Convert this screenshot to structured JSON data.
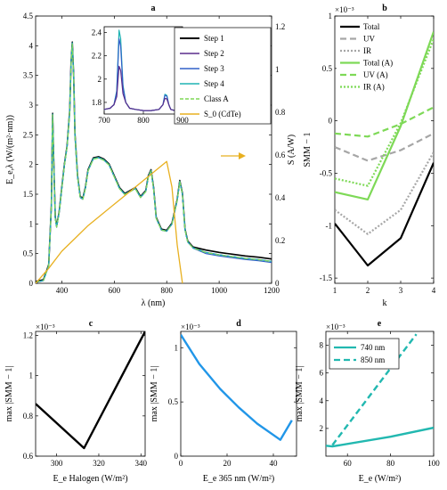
{
  "chart_data": [
    {
      "id": "a",
      "type": "line",
      "title": "a",
      "xlabel": "λ (nm)",
      "ylabel": "E_e,λ (W/(m²·nm))",
      "y2label": "S (A/W)",
      "xlim": [
        300,
        1200
      ],
      "ylim": [
        0,
        4.5
      ],
      "y2lim": [
        0,
        1.25
      ],
      "xticks": [
        "400",
        "600",
        "800",
        "1000",
        "1200"
      ],
      "yticks": [
        "0",
        "0.5",
        "1",
        "1.5",
        "2",
        "2.5",
        "3",
        "3.5",
        "4",
        "4.5"
      ],
      "y2ticks": [
        "0",
        "0.2",
        "0.4",
        "0.6",
        "0.8",
        "1",
        "1.2"
      ],
      "legend": [
        "Step 1",
        "Step 2",
        "Step 3",
        "Step 4",
        "Class A",
        "S_0 (CdTe)"
      ],
      "colors": {
        "step1": "#000000",
        "step2": "#5a2d8c",
        "step3": "#3060c8",
        "step4": "#1fb3b3",
        "classA": "#7ed957",
        "s0": "#e8b020"
      },
      "series": [
        {
          "name": "Step 4",
          "x": [
            300,
            330,
            350,
            360,
            365,
            370,
            375,
            380,
            390,
            400,
            410,
            420,
            430,
            435,
            440,
            445,
            450,
            460,
            470,
            480,
            490,
            500,
            520,
            540,
            560,
            580,
            600,
            620,
            640,
            660,
            680,
            700,
            720,
            730,
            740,
            750,
            760,
            780,
            800,
            820,
            840,
            850,
            860,
            870,
            880,
            900,
            950,
            1000,
            1050,
            1100,
            1150,
            1200
          ],
          "y": [
            0.02,
            0.05,
            0.3,
            1.3,
            2.85,
            1.9,
            1.1,
            0.95,
            1.2,
            1.6,
            2.0,
            2.3,
            2.9,
            3.7,
            4.05,
            3.5,
            2.5,
            1.8,
            1.45,
            1.42,
            1.6,
            1.9,
            2.1,
            2.12,
            2.08,
            2.0,
            1.8,
            1.6,
            1.5,
            1.55,
            1.6,
            1.45,
            1.55,
            1.8,
            1.9,
            1.6,
            1.1,
            0.9,
            0.88,
            1.0,
            1.4,
            1.72,
            1.5,
            0.9,
            0.7,
            0.6,
            0.52,
            0.48,
            0.45,
            0.42,
            0.4,
            0.37
          ]
        },
        {
          "name": "S_0 (CdTe)",
          "x": [
            300,
            350,
            400,
            450,
            500,
            550,
            600,
            650,
            700,
            750,
            800,
            820,
            840,
            860
          ],
          "y": [
            0.0,
            0.07,
            0.15,
            0.21,
            0.27,
            0.32,
            0.37,
            0.42,
            0.47,
            0.52,
            0.57,
            0.45,
            0.18,
            0.0
          ]
        }
      ],
      "inset": {
        "xlim": [
          700,
          900
        ],
        "ylim": [
          1.7,
          2.45
        ],
        "xticks": [
          "700",
          "800",
          "900"
        ],
        "yticks": [
          "1.8",
          "2",
          "2.2",
          "2.4"
        ],
        "x": [
          700,
          715,
          725,
          732,
          738,
          742,
          748,
          755,
          765,
          780,
          800,
          820,
          840,
          850,
          855,
          860,
          865,
          870,
          880,
          900
        ],
        "y": [
          1.74,
          1.75,
          1.78,
          1.9,
          2.42,
          2.35,
          1.95,
          1.8,
          1.75,
          1.74,
          1.73,
          1.73,
          1.74,
          1.78,
          1.87,
          1.86,
          1.78,
          1.74,
          1.73,
          1.72
        ]
      }
    },
    {
      "id": "b",
      "type": "line",
      "title": "b",
      "xlabel": "k",
      "ylabel": "SMM − 1",
      "multiplier": "×10⁻³",
      "xlim": [
        1,
        4
      ],
      "ylim": [
        -1.55,
        1.0
      ],
      "xticks": [
        "1",
        "2",
        "3",
        "4"
      ],
      "yticks": [
        "-1.5",
        "-1",
        "-0.5",
        "0",
        "0.5",
        "1"
      ],
      "series": [
        {
          "name": "Total",
          "style": "solid",
          "color": "#000000",
          "x": [
            1,
            2,
            3,
            4
          ],
          "y": [
            -0.98,
            -1.38,
            -1.12,
            -0.4
          ]
        },
        {
          "name": "UV",
          "style": "dash",
          "color": "#a6a6a6",
          "x": [
            1,
            2,
            3,
            4
          ],
          "y": [
            -0.25,
            -0.38,
            -0.28,
            -0.12
          ]
        },
        {
          "name": "IR",
          "style": "dot",
          "color": "#a6a6a6",
          "x": [
            1,
            2,
            3,
            4
          ],
          "y": [
            -0.85,
            -1.08,
            -0.85,
            -0.3
          ]
        },
        {
          "name": "Total (A)",
          "style": "solid",
          "color": "#7ed957",
          "x": [
            1,
            2,
            3,
            4
          ],
          "y": [
            -0.68,
            -0.75,
            -0.05,
            0.85
          ]
        },
        {
          "name": "UV (A)",
          "style": "dash",
          "color": "#7ed957",
          "x": [
            1,
            2,
            3,
            4
          ],
          "y": [
            -0.12,
            -0.15,
            -0.03,
            0.13
          ]
        },
        {
          "name": "IR (A)",
          "style": "dot",
          "color": "#7ed957",
          "x": [
            1,
            2,
            3,
            4
          ],
          "y": [
            -0.55,
            -0.62,
            -0.02,
            0.78
          ]
        }
      ]
    },
    {
      "id": "c",
      "type": "line",
      "title": "c",
      "xlabel": "E_e Halogen (W/m²)",
      "ylabel": "max |SMM − 1|",
      "multiplier": "×10⁻³",
      "xlim": [
        290,
        342
      ],
      "ylim": [
        0.6,
        1.22
      ],
      "xticks": [
        "300",
        "320",
        "340"
      ],
      "yticks": [
        "0.6",
        "0.8",
        "1",
        "1.2"
      ],
      "series": [
        {
          "name": "",
          "color": "#000000",
          "x": [
            290,
            313,
            342
          ],
          "y": [
            0.86,
            0.64,
            1.22
          ]
        }
      ]
    },
    {
      "id": "d",
      "type": "line",
      "title": "d",
      "xlabel": "E_e 365 nm (W/m²)",
      "ylabel": "max |SMM − 1|",
      "multiplier": "×10⁻³",
      "xlim": [
        0,
        50
      ],
      "ylim": [
        0,
        1.15
      ],
      "xticks": [
        "0",
        "20",
        "40"
      ],
      "yticks": [
        "0",
        "0.5",
        "1"
      ],
      "series": [
        {
          "name": "",
          "color": "#2196e8",
          "x": [
            0,
            8,
            17,
            25,
            33,
            43,
            48
          ],
          "y": [
            1.12,
            0.85,
            0.62,
            0.45,
            0.3,
            0.15,
            0.33
          ]
        }
      ]
    },
    {
      "id": "e",
      "type": "line",
      "title": "e",
      "xlabel": "E_e (W/m²)",
      "ylabel": "max |SMM − 1|",
      "multiplier": "×10⁻³",
      "xlim": [
        50,
        100
      ],
      "ylim": [
        0,
        9
      ],
      "xticks": [
        "60",
        "80",
        "100"
      ],
      "yticks": [
        "2",
        "4",
        "6",
        "8"
      ],
      "series": [
        {
          "name": "740 nm",
          "style": "solid",
          "color": "#22b8b0",
          "x": [
            50,
            53,
            80,
            100
          ],
          "y": [
            0.75,
            0.7,
            1.4,
            2.05
          ]
        },
        {
          "name": "850 nm",
          "style": "dash",
          "color": "#22b8b0",
          "x": [
            53,
            92
          ],
          "y": [
            0.8,
            8.8
          ]
        }
      ]
    }
  ]
}
